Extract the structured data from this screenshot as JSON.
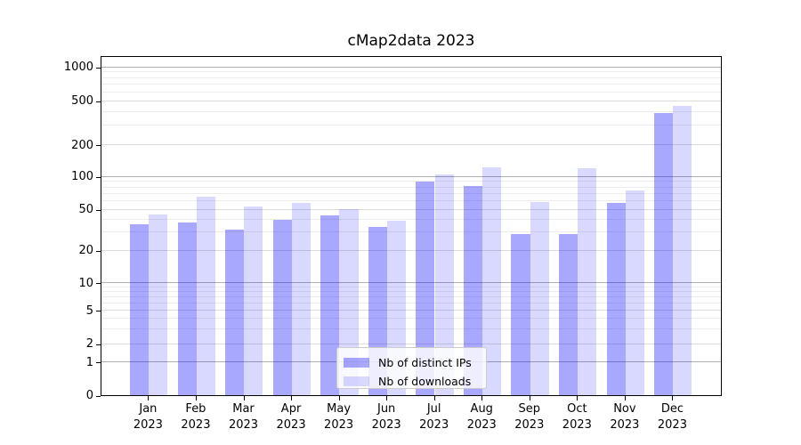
{
  "chart_data": {
    "type": "bar",
    "title": "cMap2data 2023",
    "categories": [
      "Jan 2023",
      "Feb 2023",
      "Mar 2023",
      "Apr 2023",
      "May 2023",
      "Jun 2023",
      "Jul 2023",
      "Aug 2023",
      "Sep 2023",
      "Oct 2023",
      "Nov 2023",
      "Dec 2023"
    ],
    "series": [
      {
        "name": "Nb of distinct IPs",
        "fill": "rgba(0,0,255,0.34)",
        "apparent_color": "#a9a9ff",
        "values": [
          36,
          37,
          32,
          40,
          44,
          34,
          90,
          82,
          29,
          29,
          57,
          390
        ]
      },
      {
        "name": "Nb of downloads",
        "fill": "rgba(0,0,255,0.15)",
        "apparent_color": "#d9d9ff",
        "values": [
          45,
          65,
          53,
          57,
          50,
          39,
          105,
          122,
          58,
          119,
          75,
          450
        ]
      }
    ],
    "yscale": "symlog",
    "yticks": [
      0,
      1,
      2,
      5,
      10,
      20,
      50,
      100,
      200,
      500,
      1000
    ],
    "ylim": [
      0,
      1265
    ],
    "xlabel": "",
    "ylabel": "",
    "grid": true,
    "grid_major_values": [
      1,
      10,
      100,
      1000
    ],
    "grid_mid_values": [
      2,
      5,
      20,
      50,
      200,
      500
    ],
    "grid_minor_values": [
      3,
      4,
      6,
      7,
      8,
      9,
      30,
      40,
      60,
      70,
      80,
      90,
      300,
      400,
      600,
      700,
      800,
      900
    ],
    "grid_major_color": "#b0b0b0",
    "grid_mid_color": "#dcdcdc",
    "grid_minor_color": "#ededed",
    "axis_color": "#000000",
    "legend_position": "lower center"
  }
}
